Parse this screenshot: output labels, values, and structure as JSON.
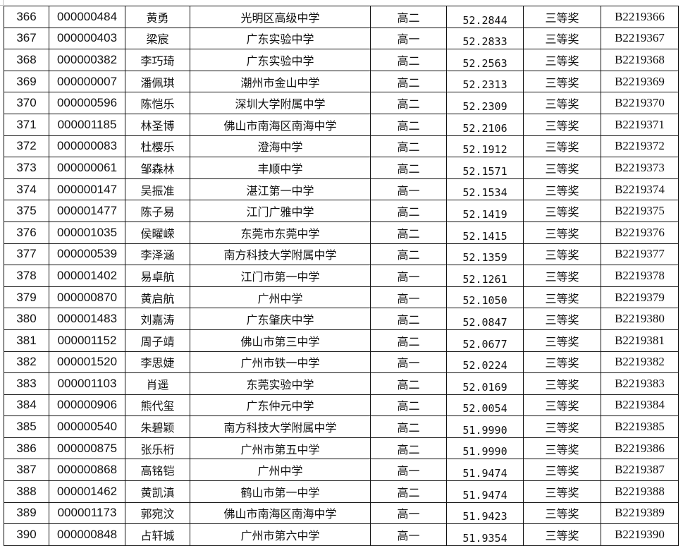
{
  "rows": [
    [
      "366",
      "000000484",
      "黄勇",
      "光明区高级中学",
      "高二",
      "52.2844",
      "三等奖",
      "B2219366"
    ],
    [
      "367",
      "000000403",
      "梁宸",
      "广东实验中学",
      "高一",
      "52.2833",
      "三等奖",
      "B2219367"
    ],
    [
      "368",
      "000000382",
      "李巧琦",
      "广东实验中学",
      "高二",
      "52.2563",
      "三等奖",
      "B2219368"
    ],
    [
      "369",
      "000000007",
      "潘佩琪",
      "潮州市金山中学",
      "高二",
      "52.2313",
      "三等奖",
      "B2219369"
    ],
    [
      "370",
      "000000596",
      "陈恺乐",
      "深圳大学附属中学",
      "高二",
      "52.2309",
      "三等奖",
      "B2219370"
    ],
    [
      "371",
      "000001185",
      "林圣博",
      "佛山市南海区南海中学",
      "高二",
      "52.2106",
      "三等奖",
      "B2219371"
    ],
    [
      "372",
      "000000083",
      "杜樱乐",
      "澄海中学",
      "高二",
      "52.1912",
      "三等奖",
      "B2219372"
    ],
    [
      "373",
      "000000061",
      "邹森林",
      "丰顺中学",
      "高二",
      "52.1571",
      "三等奖",
      "B2219373"
    ],
    [
      "374",
      "000000147",
      "吴振准",
      "湛江第一中学",
      "高一",
      "52.1534",
      "三等奖",
      "B2219374"
    ],
    [
      "375",
      "000001477",
      "陈子易",
      "江门广雅中学",
      "高二",
      "52.1419",
      "三等奖",
      "B2219375"
    ],
    [
      "376",
      "000001035",
      "侯曜嵘",
      "东莞市东莞中学",
      "高二",
      "52.1415",
      "三等奖",
      "B2219376"
    ],
    [
      "377",
      "000000539",
      "李泽涵",
      "南方科技大学附属中学",
      "高二",
      "52.1359",
      "三等奖",
      "B2219377"
    ],
    [
      "378",
      "000001402",
      "易卓航",
      "江门市第一中学",
      "高一",
      "52.1261",
      "三等奖",
      "B2219378"
    ],
    [
      "379",
      "000000870",
      "黄启航",
      "广州中学",
      "高一",
      "52.1050",
      "三等奖",
      "B2219379"
    ],
    [
      "380",
      "000001483",
      "刘嘉涛",
      "广东肇庆中学",
      "高二",
      "52.0847",
      "三等奖",
      "B2219380"
    ],
    [
      "381",
      "000001152",
      "周子靖",
      "佛山市第三中学",
      "高二",
      "52.0677",
      "三等奖",
      "B2219381"
    ],
    [
      "382",
      "000001520",
      "李思婕",
      "广州市铁一中学",
      "高一",
      "52.0224",
      "三等奖",
      "B2219382"
    ],
    [
      "383",
      "000001103",
      "肖遥",
      "东莞实验中学",
      "高二",
      "52.0169",
      "三等奖",
      "B2219383"
    ],
    [
      "384",
      "000000906",
      "熊代玺",
      "广东仲元中学",
      "高二",
      "52.0054",
      "三等奖",
      "B2219384"
    ],
    [
      "385",
      "000000540",
      "朱碧颖",
      "南方科技大学附属中学",
      "高二",
      "51.9990",
      "三等奖",
      "B2219385"
    ],
    [
      "386",
      "000000875",
      "张乐桁",
      "广州市第五中学",
      "高二",
      "51.9990",
      "三等奖",
      "B2219386"
    ],
    [
      "387",
      "000000868",
      "高铭铠",
      "广州中学",
      "高一",
      "51.9474",
      "三等奖",
      "B2219387"
    ],
    [
      "388",
      "000001462",
      "黄凯滇",
      "鹤山市第一中学",
      "高二",
      "51.9474",
      "三等奖",
      "B2219388"
    ],
    [
      "389",
      "000001173",
      "郭宛汶",
      "佛山市南海区南海中学",
      "高一",
      "51.9423",
      "三等奖",
      "B2219389"
    ],
    [
      "390",
      "000000848",
      "占轩城",
      "广州市第六中学",
      "高一",
      "51.9354",
      "三等奖",
      "B2219390"
    ]
  ]
}
